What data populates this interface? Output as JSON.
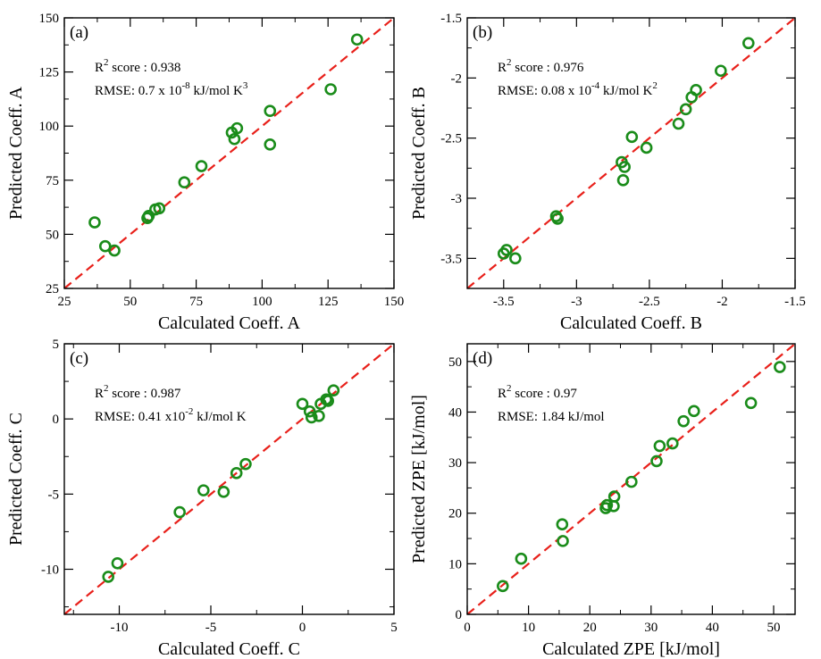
{
  "colors": {
    "points": "#1a8c1a",
    "diagonal": "#e8201a",
    "axes": "#000000"
  },
  "chart_data": [
    {
      "type": "scatter",
      "panel_label": "(a)",
      "xlabel": "Calculated Coeff. A",
      "ylabel": "Predicted Coeff. A",
      "xlim": [
        25,
        150
      ],
      "ylim": [
        25,
        150
      ],
      "xticks": [
        25,
        50,
        75,
        100,
        125,
        150
      ],
      "xtick_labels": [
        "25",
        "50",
        "75",
        "100",
        "125",
        "150"
      ],
      "yticks": [
        25,
        50,
        75,
        100,
        125,
        150
      ],
      "ytick_labels": [
        "25",
        "50",
        "75",
        "100",
        "125",
        "150"
      ],
      "annotations": {
        "r2": {
          "r": "R",
          "sup": "2",
          "rest": " score :  0.938"
        },
        "rmse": {
          "pre": "RMSE: 0.7 x 10",
          "sup": "-8",
          "post": " kJ/mol K",
          "sup2": "3"
        }
      },
      "reference_line": "y = x",
      "points": [
        {
          "x": 36.5,
          "y": 55.5
        },
        {
          "x": 40.5,
          "y": 44.5
        },
        {
          "x": 44,
          "y": 42.5
        },
        {
          "x": 56.5,
          "y": 57.5
        },
        {
          "x": 57,
          "y": 58.5
        },
        {
          "x": 59.5,
          "y": 61.5
        },
        {
          "x": 61,
          "y": 62
        },
        {
          "x": 70.5,
          "y": 74
        },
        {
          "x": 77,
          "y": 81.5
        },
        {
          "x": 88.5,
          "y": 97
        },
        {
          "x": 89.5,
          "y": 94
        },
        {
          "x": 90.5,
          "y": 99
        },
        {
          "x": 103,
          "y": 107
        },
        {
          "x": 103,
          "y": 91.5
        },
        {
          "x": 126,
          "y": 117
        },
        {
          "x": 136,
          "y": 140
        }
      ]
    },
    {
      "type": "scatter",
      "panel_label": "(b)",
      "xlabel": "Calculated Coeff. B",
      "ylabel": "Predicted Coeff. B",
      "xlim": [
        -3.75,
        -1.5
      ],
      "ylim": [
        -3.75,
        -1.5
      ],
      "xticks": [
        -3.5,
        -3,
        -2.5,
        -2,
        -1.5
      ],
      "xtick_labels": [
        "-3.5",
        "-3",
        "-2.5",
        "-2",
        "-1.5"
      ],
      "yticks": [
        -3.5,
        -3,
        -2.5,
        -2,
        -1.5
      ],
      "ytick_labels": [
        "-3.5",
        "-3",
        "-2.5",
        "-2",
        "-1.5"
      ],
      "annotations": {
        "r2": {
          "r": "R",
          "sup": "2",
          "rest": " score :  0.976"
        },
        "rmse": {
          "pre": "RMSE: 0.08 x 10",
          "sup": "-4",
          "post": " kJ/mol K",
          "sup2": "2"
        }
      },
      "reference_line": "y = x",
      "points": [
        {
          "x": -3.5,
          "y": -3.46
        },
        {
          "x": -3.48,
          "y": -3.43
        },
        {
          "x": -3.42,
          "y": -3.5
        },
        {
          "x": -3.14,
          "y": -3.15
        },
        {
          "x": -3.13,
          "y": -3.17
        },
        {
          "x": -2.69,
          "y": -2.7
        },
        {
          "x": -2.68,
          "y": -2.85
        },
        {
          "x": -2.67,
          "y": -2.74
        },
        {
          "x": -2.62,
          "y": -2.49
        },
        {
          "x": -2.52,
          "y": -2.58
        },
        {
          "x": -2.3,
          "y": -2.38
        },
        {
          "x": -2.25,
          "y": -2.26
        },
        {
          "x": -2.21,
          "y": -2.16
        },
        {
          "x": -2.18,
          "y": -2.1
        },
        {
          "x": -2.01,
          "y": -1.94
        },
        {
          "x": -1.82,
          "y": -1.71
        }
      ]
    },
    {
      "type": "scatter",
      "panel_label": "(c)",
      "xlabel": "Calculated Coeff. C",
      "ylabel": "Predicted Coeff. C",
      "xlim": [
        -13,
        5
      ],
      "ylim": [
        -13,
        5
      ],
      "xticks": [
        -10,
        -5,
        0,
        5
      ],
      "xtick_labels": [
        "-10",
        "-5",
        "0",
        "5"
      ],
      "yticks": [
        -10,
        -5,
        0,
        5
      ],
      "ytick_labels": [
        "-10",
        "-5",
        "0",
        "5"
      ],
      "annotations": {
        "r2": {
          "r": "R",
          "sup": "2",
          "rest": " score :  0.987"
        },
        "rmse": {
          "pre": "RMSE: 0.41 x10",
          "sup": "-2",
          "post": " kJ/mol K",
          "sup2": ""
        }
      },
      "reference_line": "y = x",
      "points": [
        {
          "x": -10.6,
          "y": -10.5
        },
        {
          "x": -10.1,
          "y": -9.6
        },
        {
          "x": -6.7,
          "y": -6.2
        },
        {
          "x": -5.4,
          "y": -4.75
        },
        {
          "x": -4.3,
          "y": -4.85
        },
        {
          "x": -3.6,
          "y": -3.6
        },
        {
          "x": -3.1,
          "y": -3.0
        },
        {
          "x": 0.0,
          "y": 1.0
        },
        {
          "x": 0.4,
          "y": 0.5
        },
        {
          "x": 0.5,
          "y": 0.1
        },
        {
          "x": 0.9,
          "y": 0.2
        },
        {
          "x": 1.0,
          "y": 1.0
        },
        {
          "x": 1.3,
          "y": 1.3
        },
        {
          "x": 1.4,
          "y": 1.2
        },
        {
          "x": 1.7,
          "y": 1.9
        }
      ]
    },
    {
      "type": "scatter",
      "panel_label": "(d)",
      "xlabel": "Calculated ZPE [kJ/mol]",
      "ylabel": "Predicted ZPE [kJ/mol]",
      "xlim": [
        0,
        53.5
      ],
      "ylim": [
        0,
        53.5
      ],
      "xticks": [
        0,
        10,
        20,
        30,
        40,
        50
      ],
      "xtick_labels": [
        "0",
        "10",
        "20",
        "30",
        "40",
        "50"
      ],
      "yticks": [
        0,
        10,
        20,
        30,
        40,
        50
      ],
      "ytick_labels": [
        "0",
        "10",
        "20",
        "30",
        "40",
        "50"
      ],
      "annotations": {
        "r2": {
          "r": "R",
          "sup": "2",
          "rest": " score :  0.97"
        },
        "rmse": {
          "pre": "RMSE: 1.84 kJ/mol",
          "sup": "",
          "post": "",
          "sup2": ""
        }
      },
      "reference_line": "y = x",
      "points": [
        {
          "x": 5.8,
          "y": 5.6
        },
        {
          "x": 8.8,
          "y": 11.0
        },
        {
          "x": 15.5,
          "y": 17.8
        },
        {
          "x": 15.6,
          "y": 14.5
        },
        {
          "x": 22.6,
          "y": 21.0
        },
        {
          "x": 22.8,
          "y": 21.6
        },
        {
          "x": 23.9,
          "y": 21.4
        },
        {
          "x": 24.0,
          "y": 23.3
        },
        {
          "x": 26.8,
          "y": 26.2
        },
        {
          "x": 30.9,
          "y": 30.3
        },
        {
          "x": 31.4,
          "y": 33.3
        },
        {
          "x": 33.5,
          "y": 33.8
        },
        {
          "x": 35.3,
          "y": 38.2
        },
        {
          "x": 37.0,
          "y": 40.2
        },
        {
          "x": 46.3,
          "y": 41.8
        },
        {
          "x": 51.0,
          "y": 48.9
        }
      ]
    }
  ]
}
